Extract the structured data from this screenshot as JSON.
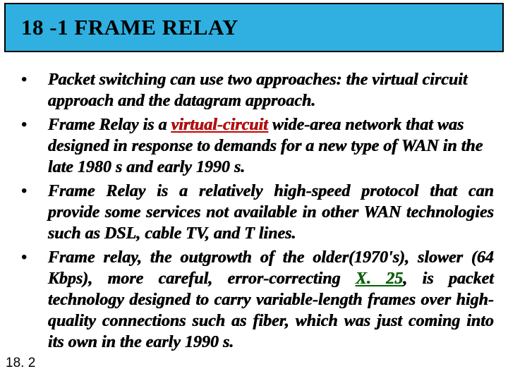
{
  "header": {
    "title": "18 -1   FRAME RELAY",
    "bg_color": "#2fb0e0",
    "border_color": "#000000"
  },
  "bullets": [
    {
      "marker": "•",
      "justify": false,
      "segments": [
        {
          "t": "Packet switching can use two approaches: the virtual circuit approach and the datagram approach."
        }
      ]
    },
    {
      "marker": "•",
      "justify": false,
      "segments": [
        {
          "t": "Frame Relay is a "
        },
        {
          "t": "virtual-circuit",
          "cls": "vc"
        },
        {
          "t": " wide-area network that was designed in response to demands for a new type of WAN in the late 1980 s and early 1990 s."
        }
      ]
    },
    {
      "marker": "•",
      "justify": true,
      "segments": [
        {
          "t": "Frame Relay is a relatively high-speed protocol that can provide some services not available in other WAN technologies such as DSL, cable TV, and T lines."
        }
      ]
    },
    {
      "marker": "•",
      "justify": true,
      "segments": [
        {
          "t": "Frame relay, the outgrowth of the older(1970's), slower (64 Kbps), more careful, error-correcting "
        },
        {
          "t": "X. 25",
          "cls": "x25"
        },
        {
          "t": ", is packet technology designed to carry variable-length frames over high-quality connections such as fiber, which was just coming into its own in the early 1990 s."
        }
      ]
    }
  ],
  "page_number": "18. 2",
  "colors": {
    "vc_color": "#cc0000",
    "x25_color": "#006600",
    "text_color": "#000000",
    "bg_color": "#ffffff"
  },
  "typography": {
    "title_fontsize": 31,
    "body_fontsize": 24,
    "body_lineheight": 30,
    "page_num_fontsize": 19,
    "font_family": "Times New Roman"
  }
}
